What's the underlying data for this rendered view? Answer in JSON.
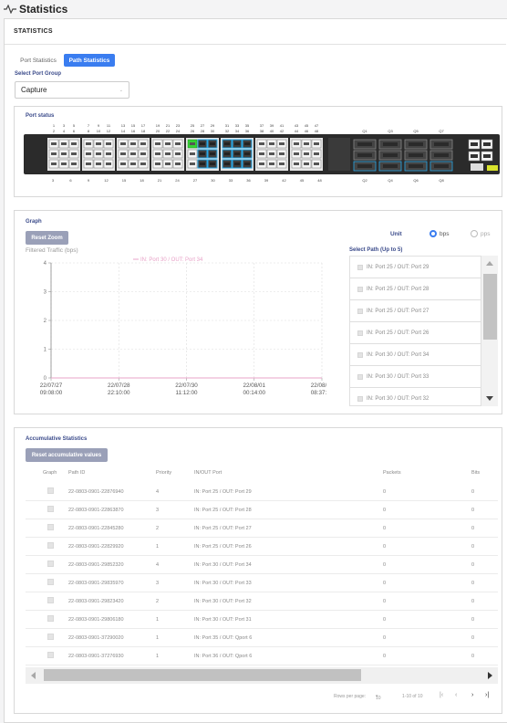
{
  "page": {
    "title": "Statistics"
  },
  "header": {
    "section_title": "STATISTICS"
  },
  "tabs": [
    {
      "label": "Port Statistics"
    },
    {
      "label": "Path Statistics"
    }
  ],
  "port_group": {
    "label": "Select Port Group",
    "value": "Capture"
  },
  "port_status": {
    "title": "Port status",
    "top_labels": [
      [
        "1",
        "2"
      ],
      [
        "3",
        "4"
      ],
      [
        "5",
        "6"
      ],
      [
        "7",
        "8"
      ],
      [
        "9",
        "10"
      ],
      [
        "11",
        "12"
      ],
      [
        "13",
        "14"
      ],
      [
        "15",
        "16"
      ],
      [
        "17",
        "18"
      ],
      [
        "19",
        "20"
      ],
      [
        "21",
        "22"
      ],
      [
        "23",
        "24"
      ],
      [
        "25",
        "26"
      ],
      [
        "27",
        "28"
      ],
      [
        "29",
        "30"
      ],
      [
        "31",
        "32"
      ],
      [
        "33",
        "34"
      ],
      [
        "35",
        "36"
      ],
      [
        "37",
        "38"
      ],
      [
        "39",
        "40"
      ],
      [
        "41",
        "42"
      ],
      [
        "43",
        "44"
      ],
      [
        "45",
        "46"
      ],
      [
        "47",
        "48"
      ]
    ],
    "qsfp_top": [
      "Q1",
      "Q3",
      "Q5",
      "Q7"
    ],
    "qsfp_bottom": [
      "Q2",
      "Q4",
      "Q6",
      "Q8"
    ],
    "bottom_labels": [
      "3",
      "6",
      "9",
      "12",
      "15",
      "18",
      "21",
      "24",
      "27",
      "30",
      "33",
      "36",
      "39",
      "42",
      "45",
      "48"
    ]
  },
  "graph": {
    "title": "Graph",
    "reset_zoom": "Reset Zoom",
    "y_axis_label": "Filtered Traffic (bps)",
    "legend": "IN: Port 30 / OUT: Port 34",
    "unit_label": "Unit",
    "unit_options": [
      "bps",
      "pps"
    ],
    "path_select_label": "Select Path (Up to 5)",
    "paths": [
      "IN: Port 25 / OUT: Port 29",
      "IN: Port 25 / OUT: Port 28",
      "IN: Port 25 / OUT: Port 27",
      "IN: Port 25 / OUT: Port 26",
      "IN: Port 30 / OUT: Port 34",
      "IN: Port 30 / OUT: Port 33",
      "IN: Port 30 / OUT: Port 32"
    ]
  },
  "chart_data": {
    "type": "line",
    "title": "",
    "ylabel": "Filtered Traffic (bps)",
    "ylim": [
      0,
      4
    ],
    "yticks": [
      "0",
      "1",
      "2",
      "3",
      "4"
    ],
    "x_ticks": [
      [
        "22/07/27",
        "09:08:00"
      ],
      [
        "22/07/28",
        "22:10:00"
      ],
      [
        "22/07/30",
        "11:12:00"
      ],
      [
        "22/08/01",
        "00:14:00"
      ],
      [
        "22/08/03",
        "08:37:30"
      ]
    ],
    "series": [
      {
        "name": "IN: Port 30 / OUT: Port 34",
        "color": "#e8a3c8",
        "x": [
          "22/07/27 09:08:00",
          "22/08/03 08:37:30"
        ],
        "values": [
          0,
          0
        ]
      }
    ],
    "grid": true
  },
  "accumulative": {
    "title": "Accumulative Statistics",
    "reset_label": "Reset accumulative values",
    "columns": [
      "Graph",
      "Path ID",
      "Priority",
      "IN/OUT Port",
      "Packets",
      "Bits"
    ],
    "rows": [
      [
        "22-0803-0901-22876940",
        "4",
        "IN: Port 25 / OUT: Port 29",
        "0",
        "0"
      ],
      [
        "22-0803-0901-22863870",
        "3",
        "IN: Port 25 / OUT: Port 28",
        "0",
        "0"
      ],
      [
        "22-0803-0901-22845280",
        "2",
        "IN: Port 25 / OUT: Port 27",
        "0",
        "0"
      ],
      [
        "22-0803-0901-22829920",
        "1",
        "IN: Port 25 / OUT: Port 26",
        "0",
        "0"
      ],
      [
        "22-0803-0901-29852320",
        "4",
        "IN: Port 30 / OUT: Port 34",
        "0",
        "0"
      ],
      [
        "22-0803-0901-29835970",
        "3",
        "IN: Port 30 / OUT: Port 33",
        "0",
        "0"
      ],
      [
        "22-0803-0901-29823420",
        "2",
        "IN: Port 30 / OUT: Port 32",
        "0",
        "0"
      ],
      [
        "22-0803-0901-29806180",
        "1",
        "IN: Port 30 / OUT: Port 31",
        "0",
        "0"
      ],
      [
        "22-0803-0901-37290020",
        "1",
        "IN: Port 35 / OUT: Qport 6",
        "0",
        "0"
      ],
      [
        "22-0803-0901-37276930",
        "1",
        "IN: Port 36 / OUT: Qport 6",
        "0",
        "0"
      ]
    ],
    "pager": {
      "rows_per_page_label": "Rows per page:",
      "rows_per_page": "10",
      "range": "1-10 of 10"
    }
  },
  "colors": {
    "accent": "#3a7df0",
    "button": "#9aa0b8",
    "link_blue": "#3a4a8a"
  }
}
